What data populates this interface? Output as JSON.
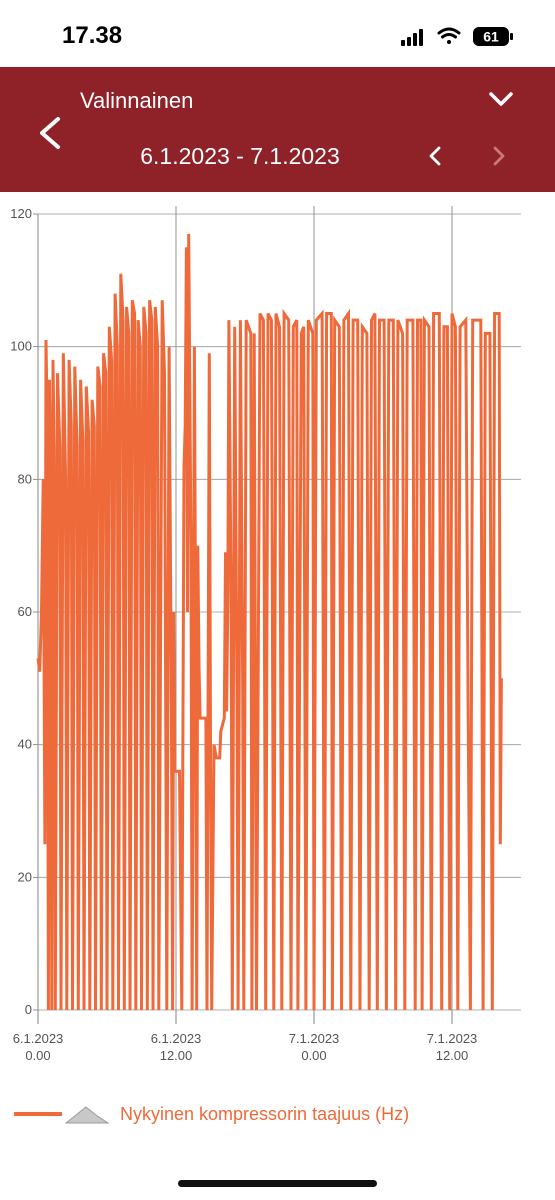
{
  "status_bar": {
    "time": "17.38",
    "battery": "61"
  },
  "header": {
    "title": "Valinnainen",
    "date_range": "6.1.2023 - 7.1.2023",
    "background": "#8f2228"
  },
  "legend": {
    "label": "Nykyinen kompressorin taajuus (Hz)",
    "color": "#ee6a3a"
  },
  "chart_data": {
    "type": "line",
    "y_ticks": [
      "0",
      "20",
      "40",
      "60",
      "80",
      "100",
      "120"
    ],
    "ylim": [
      0,
      120
    ],
    "x_ticks": [
      {
        "date": "6.1.2023",
        "time": "0.00"
      },
      {
        "date": "6.1.2023",
        "time": "12.00"
      },
      {
        "date": "7.1.2023",
        "time": "0.00"
      },
      {
        "date": "7.1.2023",
        "time": "12.00"
      }
    ],
    "xlim_hours": [
      0,
      42
    ],
    "grid": true,
    "legend_position": "bottom",
    "series": [
      {
        "name": "Nykyinen kompressorin taajuus (Hz)",
        "color": "#ee6a3a",
        "points": [
          [
            0.0,
            53
          ],
          [
            0.15,
            51
          ],
          [
            0.3,
            60
          ],
          [
            0.45,
            80
          ],
          [
            0.6,
            25
          ],
          [
            0.7,
            101
          ],
          [
            0.8,
            88
          ],
          [
            0.9,
            0
          ],
          [
            1.0,
            95
          ],
          [
            1.1,
            80
          ],
          [
            1.2,
            0
          ],
          [
            1.3,
            98
          ],
          [
            1.4,
            85
          ],
          [
            1.5,
            0
          ],
          [
            1.7,
            96
          ],
          [
            1.9,
            85
          ],
          [
            2.0,
            0
          ],
          [
            2.2,
            99
          ],
          [
            2.4,
            80
          ],
          [
            2.5,
            0
          ],
          [
            2.7,
            98
          ],
          [
            2.9,
            88
          ],
          [
            3.0,
            0
          ],
          [
            3.2,
            97
          ],
          [
            3.4,
            85
          ],
          [
            3.5,
            0
          ],
          [
            3.7,
            95
          ],
          [
            3.9,
            86
          ],
          [
            4.0,
            0
          ],
          [
            4.2,
            94
          ],
          [
            4.4,
            87
          ],
          [
            4.5,
            0
          ],
          [
            4.7,
            92
          ],
          [
            4.9,
            88
          ],
          [
            5.0,
            0
          ],
          [
            5.2,
            97
          ],
          [
            5.4,
            94
          ],
          [
            5.5,
            0
          ],
          [
            5.7,
            99
          ],
          [
            5.9,
            96
          ],
          [
            6.0,
            0
          ],
          [
            6.2,
            103
          ],
          [
            6.4,
            98
          ],
          [
            6.5,
            0
          ],
          [
            6.7,
            108
          ],
          [
            6.9,
            100
          ],
          [
            7.0,
            0
          ],
          [
            7.2,
            111
          ],
          [
            7.4,
            104
          ],
          [
            7.5,
            0
          ],
          [
            7.7,
            106
          ],
          [
            7.9,
            102
          ],
          [
            8.0,
            0
          ],
          [
            8.2,
            107
          ],
          [
            8.4,
            105
          ],
          [
            8.5,
            0
          ],
          [
            8.7,
            104
          ],
          [
            8.9,
            100
          ],
          [
            9.0,
            0
          ],
          [
            9.2,
            106
          ],
          [
            9.4,
            102
          ],
          [
            9.5,
            0
          ],
          [
            9.7,
            107
          ],
          [
            9.9,
            104
          ],
          [
            10.0,
            0
          ],
          [
            10.2,
            106
          ],
          [
            10.4,
            100
          ],
          [
            10.5,
            0
          ],
          [
            10.8,
            107
          ],
          [
            11.0,
            96
          ],
          [
            11.2,
            0
          ],
          [
            11.4,
            100
          ],
          [
            11.6,
            46
          ],
          [
            11.7,
            0
          ],
          [
            11.8,
            60
          ],
          [
            11.9,
            36
          ],
          [
            12.3,
            36
          ],
          [
            12.5,
            0
          ],
          [
            12.7,
            82
          ],
          [
            12.8,
            88
          ],
          [
            12.9,
            115
          ],
          [
            13.0,
            60
          ],
          [
            13.1,
            117
          ],
          [
            13.3,
            69
          ],
          [
            13.4,
            0
          ],
          [
            13.5,
            45
          ],
          [
            13.6,
            100
          ],
          [
            13.7,
            58
          ],
          [
            13.8,
            0
          ],
          [
            13.9,
            70
          ],
          [
            14.0,
            52
          ],
          [
            14.1,
            44
          ],
          [
            14.6,
            44
          ],
          [
            14.7,
            0
          ],
          [
            14.9,
            99
          ],
          [
            15.0,
            40
          ],
          [
            15.1,
            0
          ],
          [
            15.3,
            40
          ],
          [
            15.5,
            38
          ],
          [
            15.8,
            38
          ],
          [
            15.9,
            42
          ],
          [
            16.2,
            44
          ],
          [
            16.3,
            69
          ],
          [
            16.4,
            45
          ],
          [
            16.5,
            61
          ],
          [
            16.6,
            104
          ],
          [
            16.8,
            60
          ],
          [
            16.9,
            0
          ],
          [
            17.1,
            103
          ],
          [
            17.3,
            47
          ],
          [
            17.4,
            0
          ],
          [
            17.6,
            104
          ],
          [
            17.8,
            48
          ],
          [
            17.9,
            0
          ],
          [
            18.1,
            104
          ],
          [
            18.5,
            102
          ],
          [
            18.6,
            0
          ],
          [
            18.8,
            102
          ],
          [
            19.0,
            0
          ],
          [
            19.3,
            105
          ],
          [
            19.6,
            104
          ],
          [
            19.8,
            0
          ],
          [
            20.0,
            105
          ],
          [
            20.3,
            104
          ],
          [
            20.5,
            0
          ],
          [
            20.7,
            105
          ],
          [
            21.0,
            103
          ],
          [
            21.2,
            0
          ],
          [
            21.4,
            105
          ],
          [
            21.8,
            104
          ],
          [
            22.0,
            0
          ],
          [
            22.2,
            103
          ],
          [
            22.5,
            104
          ],
          [
            22.6,
            0
          ],
          [
            22.9,
            102
          ],
          [
            23.1,
            103
          ],
          [
            23.3,
            0
          ],
          [
            23.5,
            104
          ],
          [
            23.9,
            102
          ],
          [
            24.0,
            0
          ],
          [
            24.2,
            104
          ],
          [
            24.7,
            105
          ],
          [
            24.9,
            0
          ],
          [
            25.1,
            105
          ],
          [
            25.5,
            105
          ],
          [
            25.6,
            0
          ],
          [
            25.8,
            104
          ],
          [
            26.2,
            103
          ],
          [
            26.4,
            0
          ],
          [
            26.6,
            104
          ],
          [
            27.0,
            105
          ],
          [
            27.2,
            0
          ],
          [
            27.4,
            104
          ],
          [
            27.8,
            104
          ],
          [
            28.0,
            0
          ],
          [
            28.2,
            103
          ],
          [
            28.6,
            102
          ],
          [
            28.8,
            0
          ],
          [
            29.0,
            104
          ],
          [
            29.3,
            105
          ],
          [
            29.5,
            0
          ],
          [
            29.7,
            104
          ],
          [
            30.1,
            104
          ],
          [
            30.3,
            0
          ],
          [
            30.5,
            104
          ],
          [
            30.9,
            104
          ],
          [
            31.1,
            0
          ],
          [
            31.3,
            104
          ],
          [
            31.7,
            102
          ],
          [
            31.9,
            0
          ],
          [
            32.1,
            104
          ],
          [
            32.6,
            104
          ],
          [
            32.8,
            0
          ],
          [
            33.0,
            104
          ],
          [
            33.3,
            104
          ],
          [
            33.4,
            0
          ],
          [
            33.6,
            104
          ],
          [
            34.0,
            103
          ],
          [
            34.2,
            0
          ],
          [
            34.4,
            105
          ],
          [
            34.9,
            105
          ],
          [
            35.1,
            0
          ],
          [
            35.3,
            103
          ],
          [
            35.6,
            103
          ],
          [
            35.8,
            0
          ],
          [
            36.0,
            105
          ],
          [
            36.3,
            103
          ],
          [
            36.5,
            0
          ],
          [
            36.7,
            103
          ],
          [
            37.2,
            104
          ],
          [
            37.4,
            46
          ],
          [
            37.6,
            0
          ],
          [
            37.8,
            104
          ],
          [
            38.5,
            104
          ],
          [
            38.7,
            0
          ],
          [
            38.9,
            102
          ],
          [
            39.3,
            102
          ],
          [
            39.5,
            0
          ],
          [
            39.7,
            105
          ],
          [
            40.1,
            105
          ],
          [
            40.2,
            25
          ],
          [
            40.3,
            50
          ]
        ]
      }
    ]
  }
}
